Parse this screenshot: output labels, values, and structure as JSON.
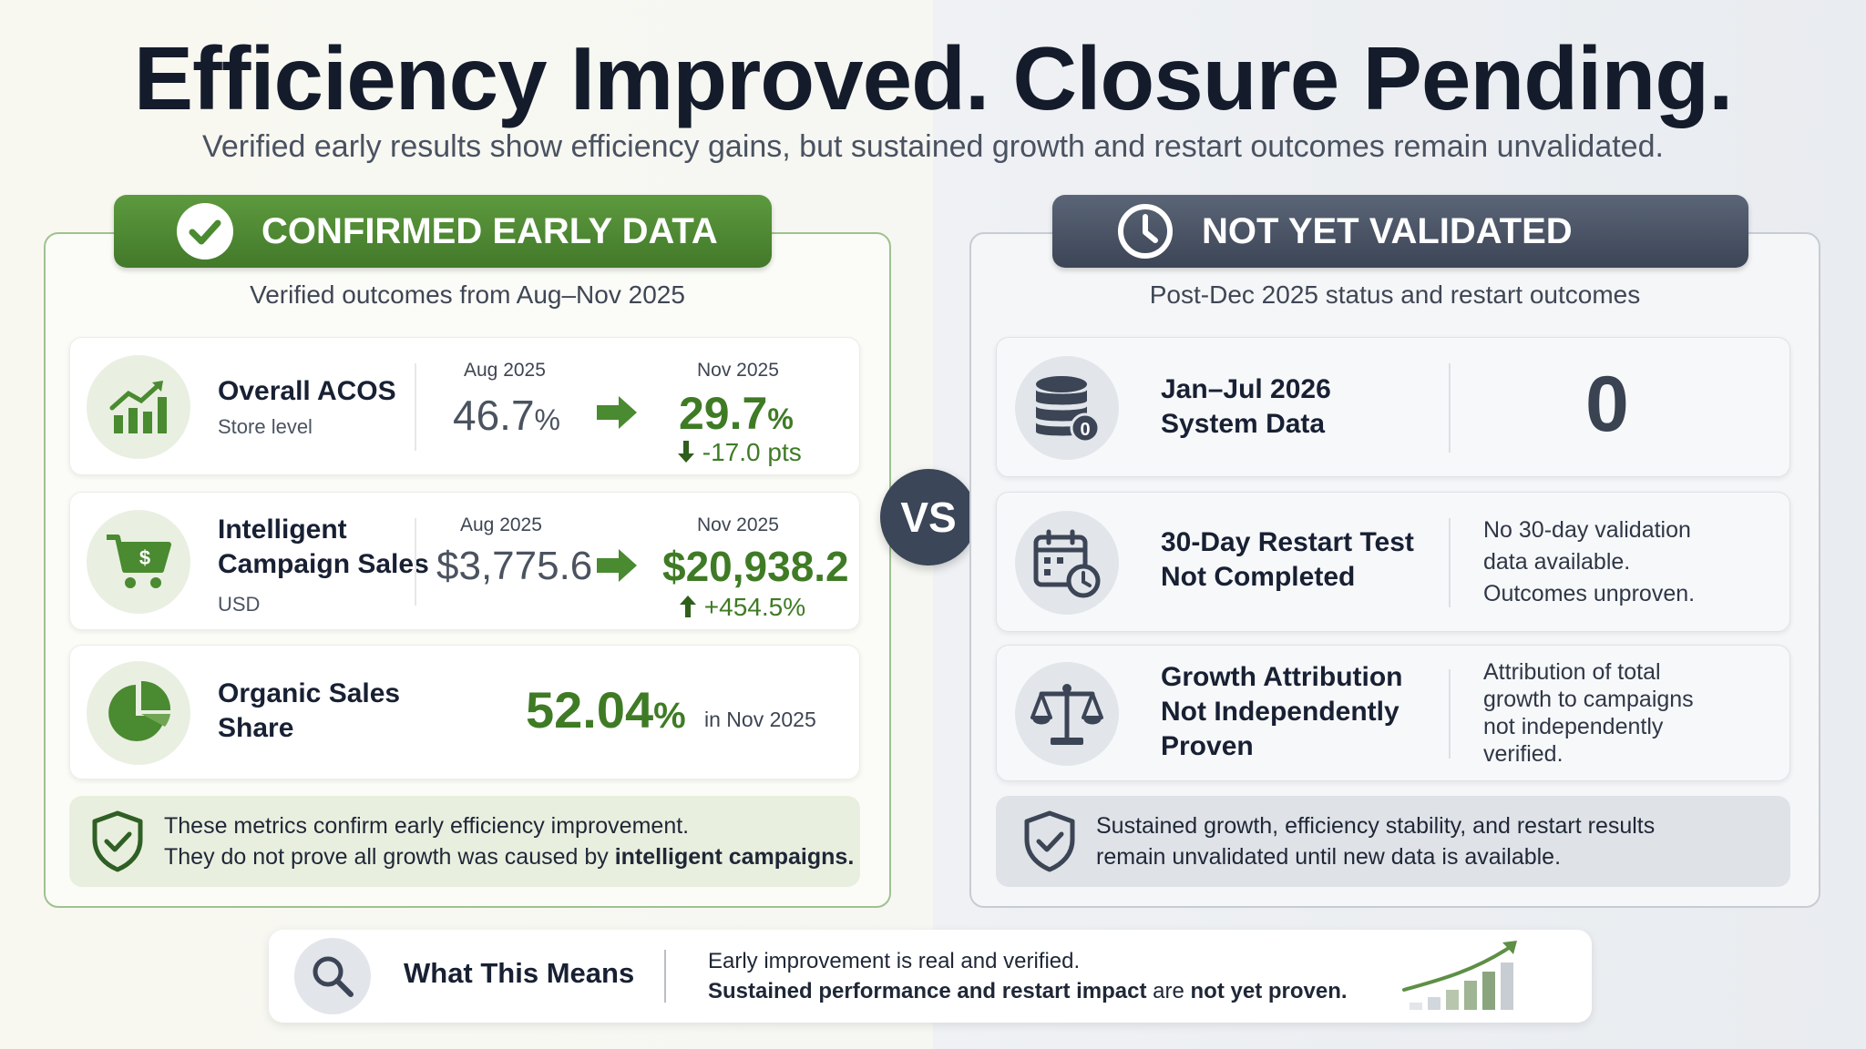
{
  "header": {
    "title": "Efficiency Improved. Closure Pending.",
    "subtitle": "Verified early results show efficiency gains, but sustained growth and restart outcomes remain unvalidated."
  },
  "left_panel": {
    "badge": "CONFIRMED EARLY DATA",
    "subtitle": "Verified outcomes from Aug–Nov 2025",
    "metrics": [
      {
        "name": "Overall ACOS",
        "sub": "Store level",
        "before_label": "Aug 2025",
        "before_value": "46.7",
        "before_unit": "%",
        "after_label": "Nov 2025",
        "after_value": "29.7",
        "after_unit": "%",
        "change": "-17.0 pts"
      },
      {
        "name_line1": "Intelligent",
        "name_line2": "Campaign Sales",
        "sub": "USD",
        "before_label": "Aug 2025",
        "before_value": "$3,775.6",
        "after_label": "Nov 2025",
        "after_value": "$20,938.2",
        "change": "+454.5%"
      },
      {
        "name_line1": "Organic Sales",
        "name_line2": "Share",
        "value": "52.04",
        "unit": "%",
        "period": "in Nov 2025"
      }
    ],
    "note_line1": "These metrics confirm early efficiency improvement.",
    "note_line2_prefix": "They do not prove all growth was caused by ",
    "note_line2_bold": "intelligent campaigns."
  },
  "vs_label": "VS",
  "right_panel": {
    "badge": "NOT YET VALIDATED",
    "subtitle": "Post-Dec 2025 status and restart outcomes",
    "rows": [
      {
        "name_line1": "Jan–Jul 2026",
        "name_line2": "System Data",
        "value": "0",
        "icon_badge": "0"
      },
      {
        "name_line1": "30-Day Restart Test",
        "name_line2": "Not Completed",
        "desc_line1": "No 30-day validation",
        "desc_line2": "data available.",
        "desc_line3": "Outcomes unproven."
      },
      {
        "name_line1": "Growth Attribution",
        "name_line2": "Not Independently",
        "name_line3": "Proven",
        "desc_line1": "Attribution of total",
        "desc_line2": "growth to campaigns",
        "desc_line3": "not independently",
        "desc_line4": "verified."
      }
    ],
    "note_line1": "Sustained growth, efficiency stability, and restart results",
    "note_line2": "remain unvalidated until new data is available."
  },
  "bottom": {
    "label": "What This Means",
    "line1": "Early improvement is real and verified.",
    "line2_bold1": "Sustained performance and restart impact",
    "line2_mid": " are ",
    "line2_bold2": "not yet proven."
  },
  "colors": {
    "green": "#4a8a30",
    "slate": "#3c4556",
    "accent_text_green": "#3f7b25"
  },
  "icons": [
    "check-icon",
    "clock-icon",
    "chart-up-icon",
    "cart-dollar-icon",
    "pie-chart-icon",
    "shield-check-icon",
    "database-icon",
    "calendar-clock-icon",
    "scales-icon",
    "search-icon",
    "trend-bars-icon"
  ]
}
